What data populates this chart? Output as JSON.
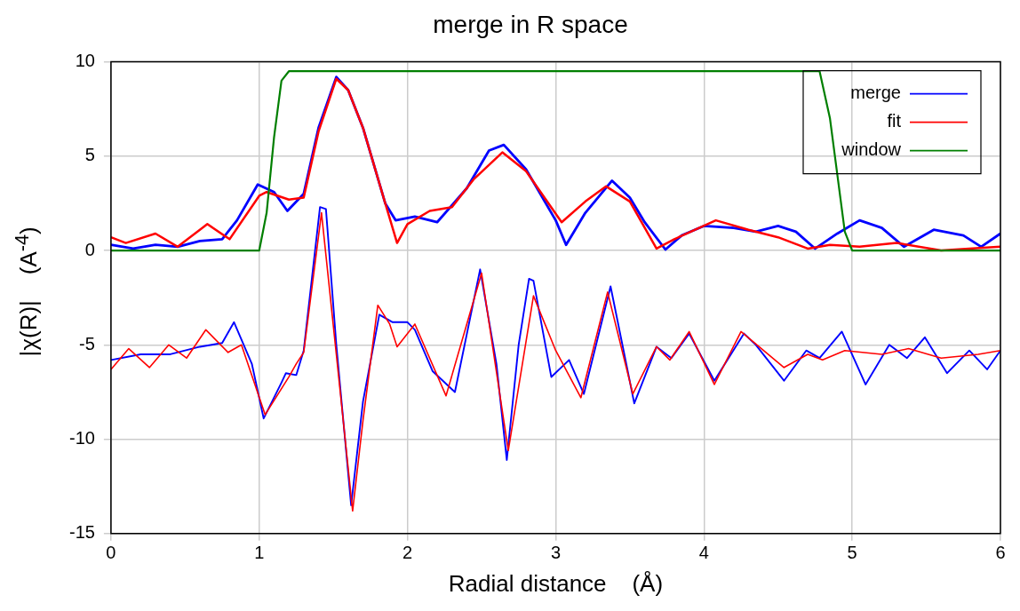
{
  "chart_data": {
    "type": "line",
    "title": "merge in R space",
    "xlabel": "Radial distance    (Å)",
    "ylabel": "|χ(R)|    (A$^{-4}$)",
    "xlim": [
      0,
      6
    ],
    "xticks": [
      0,
      1,
      2,
      3,
      4,
      5,
      6
    ],
    "ylim": [
      -15,
      10
    ],
    "yticks": [
      -15,
      -10,
      -5,
      0,
      5,
      10
    ],
    "grid": true,
    "legend": "top right",
    "marker": "none",
    "line_style": "solid",
    "series": [
      {
        "name": "merge",
        "color": "#0000ff",
        "x": [
          0,
          0.15,
          0.3,
          0.45,
          0.6,
          0.75,
          0.85,
          0.99,
          1.1,
          1.19,
          1.3,
          1.4,
          1.52,
          1.6,
          1.7,
          1.85,
          1.92,
          2.05,
          2.2,
          2.4,
          2.55,
          2.65,
          2.8,
          3.0,
          3.07,
          3.2,
          3.38,
          3.5,
          3.6,
          3.74,
          3.85,
          4.0,
          4.2,
          4.35,
          4.5,
          4.62,
          4.75,
          4.9,
          5.05,
          5.2,
          5.35,
          5.55,
          5.75,
          5.87,
          6.0
        ],
        "values": [
          0.3,
          0.1,
          0.3,
          0.2,
          0.5,
          0.6,
          1.6,
          3.5,
          3.1,
          2.1,
          3.0,
          6.5,
          9.2,
          8.5,
          6.5,
          2.5,
          1.6,
          1.8,
          1.5,
          3.3,
          5.3,
          5.6,
          4.3,
          1.6,
          0.3,
          2.0,
          3.7,
          2.8,
          1.5,
          0.05,
          0.8,
          1.3,
          1.2,
          1.0,
          1.3,
          1.0,
          0.1,
          0.9,
          1.6,
          1.2,
          0.2,
          1.1,
          0.8,
          0.2,
          0.9
        ]
      },
      {
        "name": "fit",
        "color": "#ff0000",
        "x": [
          0,
          0.1,
          0.3,
          0.45,
          0.65,
          0.8,
          1.0,
          1.05,
          1.2,
          1.3,
          1.4,
          1.52,
          1.6,
          1.7,
          1.85,
          1.93,
          2.0,
          2.15,
          2.3,
          2.45,
          2.64,
          2.8,
          3.04,
          3.2,
          3.34,
          3.5,
          3.68,
          3.8,
          4.08,
          4.3,
          4.5,
          4.7,
          4.85,
          5.05,
          5.3,
          5.6,
          6.0
        ],
        "values": [
          0.7,
          0.4,
          0.9,
          0.2,
          1.4,
          0.6,
          2.9,
          3.1,
          2.7,
          2.8,
          6.3,
          9.1,
          8.5,
          6.5,
          2.5,
          0.4,
          1.4,
          2.1,
          2.3,
          3.8,
          5.2,
          4.2,
          1.5,
          2.6,
          3.4,
          2.6,
          0.1,
          0.6,
          1.6,
          1.1,
          0.7,
          0.1,
          0.3,
          0.2,
          0.4,
          0.0,
          0.2
        ]
      },
      {
        "name": "window",
        "color": "#007f00",
        "x": [
          0,
          1.0,
          1.05,
          1.1,
          1.15,
          1.2,
          4.78,
          4.85,
          4.9,
          4.95,
          5.0,
          6.0
        ],
        "values": [
          0,
          0,
          2,
          6,
          9,
          9.5,
          9.5,
          7,
          4,
          1,
          0,
          0
        ]
      },
      {
        "color": "#0000ff",
        "x": [
          0,
          0.2,
          0.4,
          0.6,
          0.75,
          0.83,
          0.95,
          1.03,
          1.15,
          1.18,
          1.25,
          1.3,
          1.41,
          1.45,
          1.52,
          1.62,
          1.7,
          1.81,
          1.9,
          2.0,
          2.05,
          2.17,
          2.32,
          2.49,
          2.6,
          2.67,
          2.75,
          2.82,
          2.85,
          2.97,
          3.09,
          3.19,
          3.37,
          3.53,
          3.68,
          3.78,
          3.9,
          4.07,
          4.27,
          4.35,
          4.54,
          4.69,
          4.78,
          4.93,
          5.09,
          5.25,
          5.37,
          5.49,
          5.64,
          5.79,
          5.91,
          6.0
        ],
        "values": [
          -5.8,
          -5.5,
          -5.5,
          -5.1,
          -4.9,
          -3.8,
          -6.0,
          -8.9,
          -7.0,
          -6.5,
          -6.6,
          -5.3,
          2.3,
          2.2,
          -5.0,
          -13.5,
          -8.0,
          -3.4,
          -3.8,
          -3.8,
          -4.2,
          -6.4,
          -7.5,
          -1.0,
          -6.0,
          -11.1,
          -5.0,
          -1.5,
          -1.6,
          -6.7,
          -5.8,
          -7.6,
          -1.9,
          -8.1,
          -5.1,
          -5.7,
          -4.4,
          -6.9,
          -4.4,
          -5.0,
          -6.9,
          -5.3,
          -5.7,
          -4.3,
          -7.1,
          -5.0,
          -5.7,
          -4.6,
          -6.5,
          -5.3,
          -6.3,
          -5.3
        ]
      },
      {
        "color": "#ff0000",
        "x": [
          0,
          0.12,
          0.26,
          0.39,
          0.51,
          0.64,
          0.79,
          0.88,
          1.04,
          1.2,
          1.25,
          1.3,
          1.42,
          1.52,
          1.63,
          1.7,
          1.8,
          1.88,
          1.93,
          2.05,
          2.26,
          2.5,
          2.68,
          2.85,
          3.0,
          3.17,
          3.35,
          3.52,
          3.68,
          3.77,
          3.9,
          4.07,
          4.25,
          4.54,
          4.7,
          4.8,
          4.95,
          5.2,
          5.38,
          5.6,
          5.85,
          6.0
        ],
        "values": [
          -6.3,
          -5.2,
          -6.2,
          -5.0,
          -5.7,
          -4.2,
          -5.4,
          -5.0,
          -8.7,
          -6.7,
          -6.0,
          -5.4,
          2.0,
          -5.5,
          -13.8,
          -9.0,
          -2.9,
          -3.9,
          -5.1,
          -3.9,
          -7.7,
          -1.2,
          -10.6,
          -2.4,
          -5.3,
          -7.8,
          -2.2,
          -7.6,
          -5.1,
          -5.8,
          -4.3,
          -7.1,
          -4.3,
          -6.2,
          -5.5,
          -5.8,
          -5.3,
          -5.5,
          -5.2,
          -5.7,
          -5.5,
          -5.3
        ]
      }
    ]
  }
}
